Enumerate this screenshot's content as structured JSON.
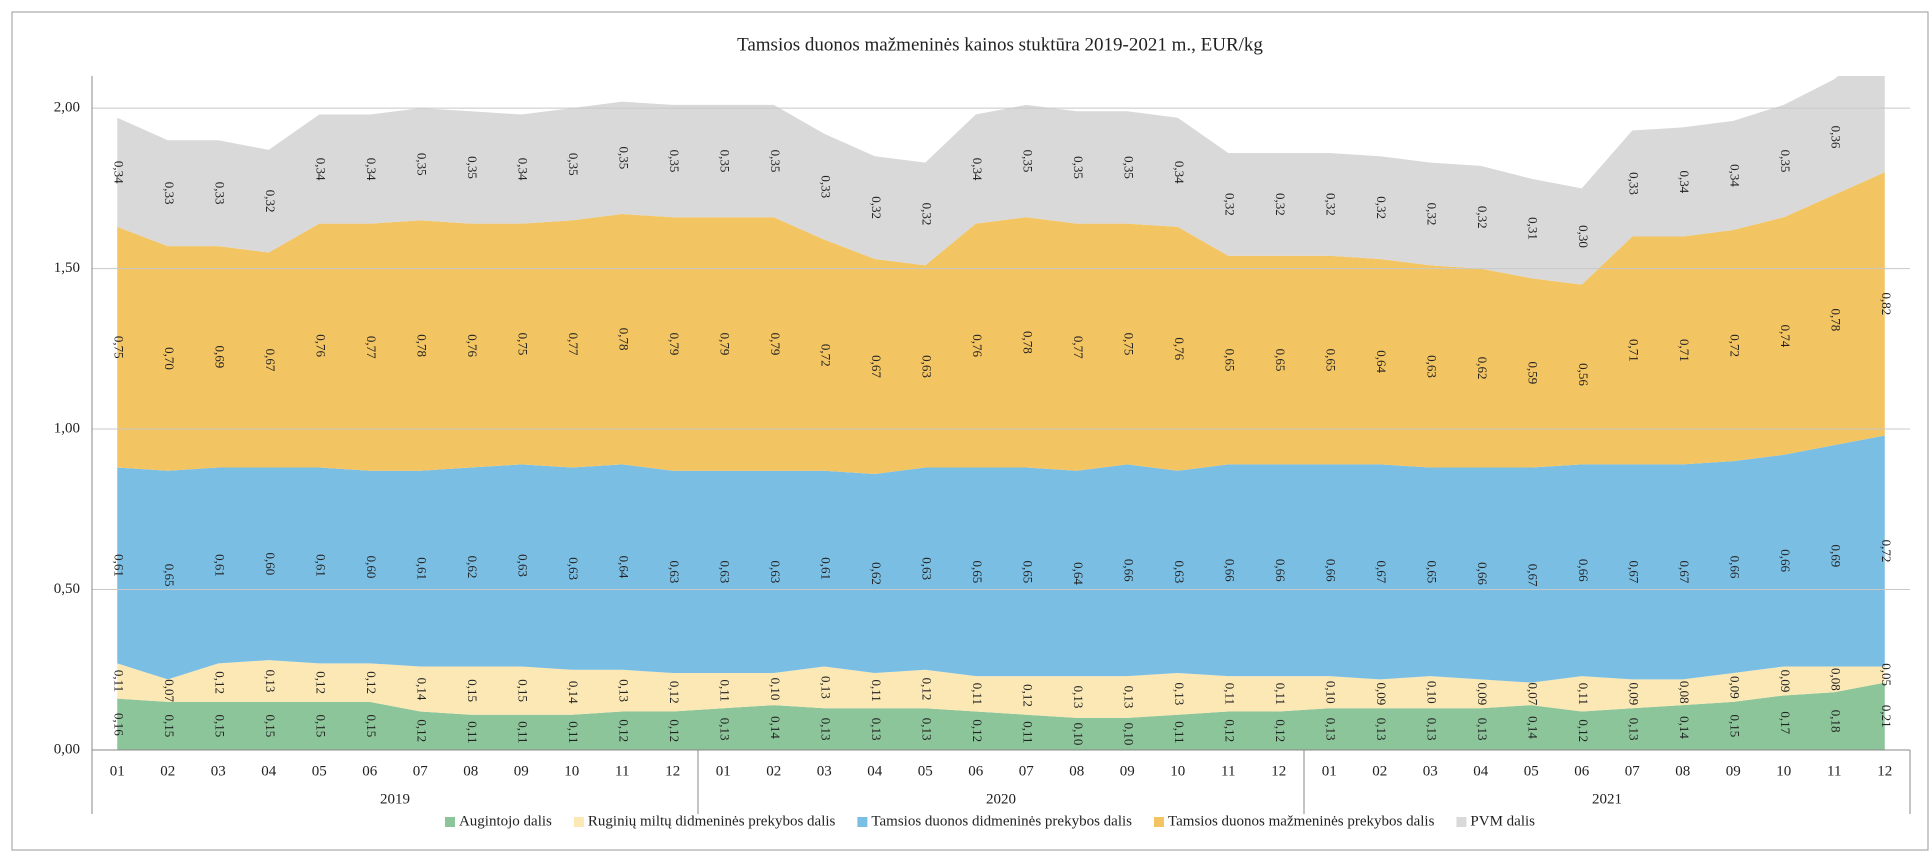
{
  "chart_data": {
    "type": "stacked_area",
    "title": "Tamsios duonos mažmeninės  kainos  stuktūra  2019-2021 m., EUR/kg",
    "categories": [
      "01",
      "02",
      "03",
      "04",
      "05",
      "06",
      "07",
      "08",
      "09",
      "10",
      "11",
      "12",
      "01",
      "02",
      "03",
      "04",
      "05",
      "06",
      "07",
      "08",
      "09",
      "10",
      "11",
      "12",
      "01",
      "02",
      "03",
      "04",
      "05",
      "06",
      "07",
      "08",
      "09",
      "10",
      "11",
      "12"
    ],
    "category_groups": [
      "2019",
      "2020",
      "2021"
    ],
    "ylim": [
      0,
      2.1
    ],
    "yticks": [
      {
        "value": 0,
        "label": "0,00"
      },
      {
        "value": 0.5,
        "label": "0,50"
      },
      {
        "value": 1,
        "label": "1,00"
      },
      {
        "value": 1.5,
        "label": "1,50"
      },
      {
        "value": 2,
        "label": "2,00"
      }
    ],
    "grid": true,
    "legend": "bottom",
    "series": [
      {
        "name": "Augintojo dalis",
        "color": "#8cc59a",
        "values": [
          0.16,
          0.15,
          0.15,
          0.15,
          0.15,
          0.15,
          0.12,
          0.11,
          0.11,
          0.11,
          0.12,
          0.12,
          0.13,
          0.14,
          0.13,
          0.13,
          0.13,
          0.12,
          0.11,
          0.1,
          0.1,
          0.11,
          0.12,
          0.12,
          0.13,
          0.13,
          0.13,
          0.13,
          0.14,
          0.12,
          0.13,
          0.14,
          0.15,
          0.17,
          0.18,
          0.21
        ],
        "value_labels": [
          "0,16",
          "0,15",
          "0,15",
          "0,15",
          "0,15",
          "0,15",
          "0,12",
          "0,11",
          "0,11",
          "0,11",
          "0,12",
          "0,12",
          "0,13",
          "0,14",
          "0,13",
          "0,13",
          "0,13",
          "0,12",
          "0,11",
          "0,10",
          "0,10",
          "0,11",
          "0,12",
          "0,12",
          "0,13",
          "0,13",
          "0,13",
          "0,13",
          "0,14",
          "0,12",
          "0,13",
          "0,14",
          "0,15",
          "0,17",
          "0,18",
          "0,21"
        ]
      },
      {
        "name": "Ruginių miltų didmeninės  prekybos dalis",
        "color": "#fbe8b5",
        "values": [
          0.11,
          0.07,
          0.12,
          0.13,
          0.12,
          0.12,
          0.14,
          0.15,
          0.15,
          0.14,
          0.13,
          0.12,
          0.11,
          0.1,
          0.13,
          0.11,
          0.12,
          0.11,
          0.12,
          0.13,
          0.13,
          0.13,
          0.11,
          0.11,
          0.1,
          0.09,
          0.1,
          0.09,
          0.07,
          0.11,
          0.09,
          0.08,
          0.09,
          0.09,
          0.08,
          0.05
        ],
        "value_labels": [
          "0,11",
          "0,07",
          "0,12",
          "0,13",
          "0,12",
          "0,12",
          "0,14",
          "0,15",
          "0,15",
          "0,14",
          "0,13",
          "0,12",
          "0,11",
          "0,10",
          "0,13",
          "0,11",
          "0,12",
          "0,11",
          "0,12",
          "0,13",
          "0,13",
          "0,13",
          "0,11",
          "0,11",
          "0,10",
          "0,09",
          "0,10",
          "0,09",
          "0,07",
          "0,11",
          "0,09",
          "0,08",
          "0,09",
          "0,09",
          "0,08",
          "0,05"
        ]
      },
      {
        "name": "Tamsios duonos didmeninės prekybos dalis",
        "color": "#7bbee3",
        "values": [
          0.61,
          0.65,
          0.61,
          0.6,
          0.61,
          0.6,
          0.61,
          0.62,
          0.63,
          0.63,
          0.64,
          0.63,
          0.63,
          0.63,
          0.61,
          0.62,
          0.63,
          0.65,
          0.65,
          0.64,
          0.66,
          0.63,
          0.66,
          0.66,
          0.66,
          0.67,
          0.65,
          0.66,
          0.67,
          0.66,
          0.67,
          0.67,
          0.66,
          0.66,
          0.69,
          0.72
        ],
        "value_labels": [
          "0,61",
          "0,65",
          "0,61",
          "0,60",
          "0,61",
          "0,60",
          "0,61",
          "0,62",
          "0,63",
          "0,63",
          "0,64",
          "0,63",
          "0,63",
          "0,63",
          "0,61",
          "0,62",
          "0,63",
          "0,65",
          "0,65",
          "0,64",
          "0,66",
          "0,63",
          "0,66",
          "0,66",
          "0,66",
          "0,67",
          "0,65",
          "0,66",
          "0,67",
          "0,66",
          "0,67",
          "0,67",
          "0,66",
          "0,66",
          "0,69",
          "0,72"
        ]
      },
      {
        "name": "Tamsios duonos mažmeninės prekybos dalis",
        "color": "#f3c462",
        "values": [
          0.75,
          0.7,
          0.69,
          0.67,
          0.76,
          0.77,
          0.78,
          0.76,
          0.75,
          0.77,
          0.78,
          0.79,
          0.79,
          0.79,
          0.72,
          0.67,
          0.63,
          0.76,
          0.78,
          0.77,
          0.75,
          0.76,
          0.65,
          0.65,
          0.65,
          0.64,
          0.63,
          0.62,
          0.59,
          0.56,
          0.71,
          0.71,
          0.72,
          0.74,
          0.78,
          0.82
        ],
        "value_labels": [
          "0,75",
          "0,70",
          "0,69",
          "0,67",
          "0,76",
          "0,77",
          "0,78",
          "0,76",
          "0,75",
          "0,77",
          "0,78",
          "0,79",
          "0,79",
          "0,79",
          "0,72",
          "0,67",
          "0,63",
          "0,76",
          "0,78",
          "0,77",
          "0,75",
          "0,76",
          "0,65",
          "0,65",
          "0,65",
          "0,64",
          "0,63",
          "0,62",
          "0,59",
          "0,56",
          "0,71",
          "0,71",
          "0,72",
          "0,74",
          "0,78",
          "0,82"
        ]
      },
      {
        "name": "PVM dalis",
        "color": "#d9d9d9",
        "values": [
          0.34,
          0.33,
          0.33,
          0.32,
          0.34,
          0.34,
          0.35,
          0.35,
          0.34,
          0.35,
          0.35,
          0.35,
          0.35,
          0.35,
          0.33,
          0.32,
          0.32,
          0.34,
          0.35,
          0.35,
          0.35,
          0.34,
          0.32,
          0.32,
          0.32,
          0.32,
          0.32,
          0.32,
          0.31,
          0.3,
          0.33,
          0.34,
          0.34,
          0.35,
          0.36,
          0.42
        ],
        "value_labels": [
          "0,34",
          "0,33",
          "0,33",
          "0,32",
          "0,34",
          "0,34",
          "0,35",
          "0,35",
          "0,34",
          "0,35",
          "0,35",
          "0,35",
          "0,35",
          "0,35",
          "0,33",
          "0,32",
          "0,32",
          "0,34",
          "0,35",
          "0,35",
          "0,35",
          "0,34",
          "0,32",
          "0,32",
          "0,32",
          "0,32",
          "0,32",
          "0,32",
          "0,31",
          "0,30",
          "0,33",
          "0,34",
          "0,34",
          "0,35",
          "0,36",
          null
        ]
      }
    ]
  }
}
